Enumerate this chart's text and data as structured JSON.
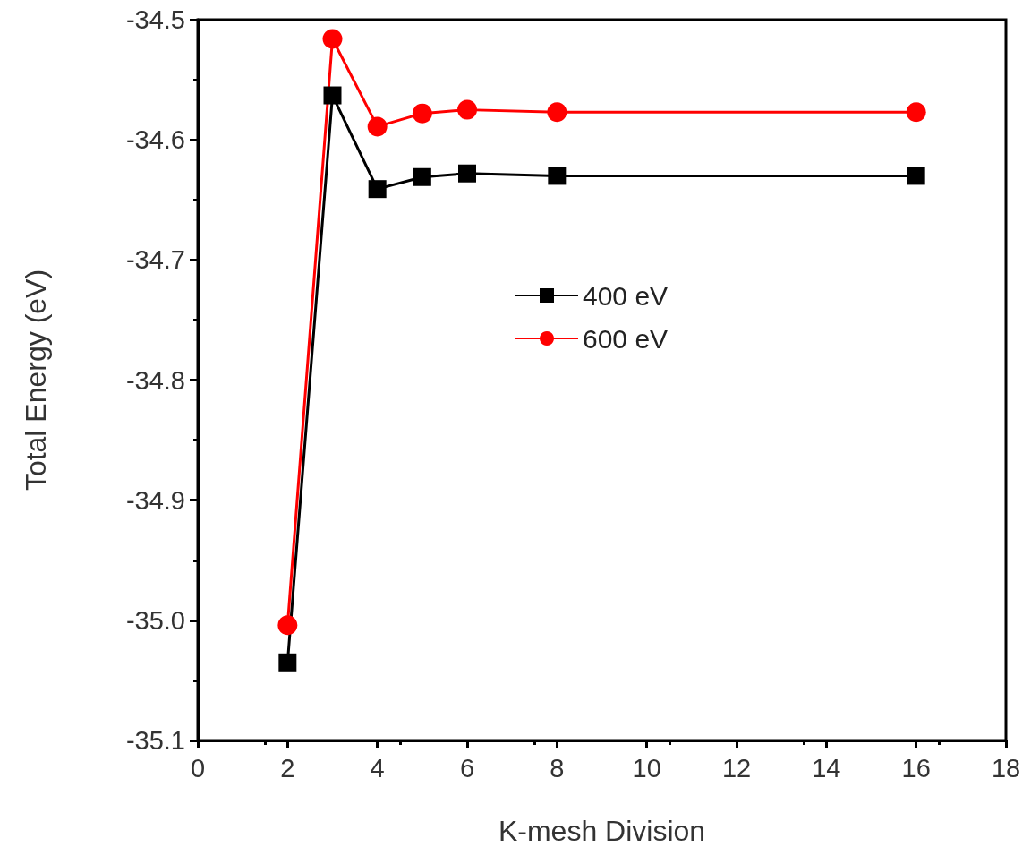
{
  "chart_data": {
    "type": "line",
    "xlabel": "K-mesh Division",
    "ylabel": "Total Energy (eV)",
    "xlim": [
      0,
      18
    ],
    "xticks": [
      0,
      2,
      4,
      6,
      8,
      10,
      12,
      14,
      16,
      18
    ],
    "ylim": [
      -35.1,
      -34.5
    ],
    "yticks": [
      -35.1,
      {
        "value": -35.0,
        "label": "-35.0"
      },
      -34.9,
      -34.8,
      -34.7,
      -34.6,
      -34.5
    ],
    "x": [
      2,
      3,
      4,
      5,
      6,
      8,
      16
    ],
    "series": [
      {
        "name": "400 eV",
        "color": "#000000",
        "marker": "square",
        "values": [
          -35.035,
          -34.563,
          -34.641,
          -34.631,
          -34.628,
          -34.63,
          -34.63
        ]
      },
      {
        "name": "600 eV",
        "color": "#ff0000",
        "marker": "circle",
        "values": [
          -35.004,
          -34.516,
          -34.589,
          -34.578,
          -34.575,
          -34.577,
          -34.577
        ]
      }
    ],
    "legend": "right",
    "grid": false,
    "line_style": "solid"
  }
}
